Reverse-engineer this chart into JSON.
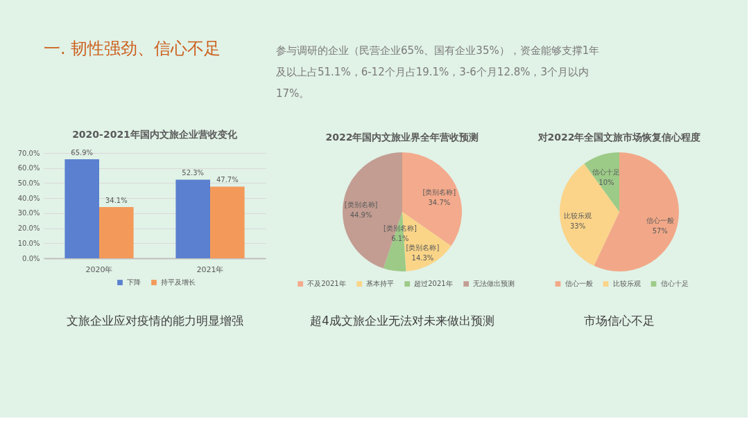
{
  "chart_data": [
    {
      "type": "other",
      "title": "一. 韧性强劲、信心不足",
      "annotations": [
        "参与调研的企业（民营企业65%、国有企业35%），资金能够支撑1年及以上占51.1%，6-12个月占19.1%，3-6个月12.8%，3个月以内17%。"
      ]
    },
    {
      "type": "bar",
      "title": "2020-2021年国内文旅企业营收变化",
      "categories": [
        "2020年",
        "2021年"
      ],
      "series": [
        {
          "name": "下降",
          "color": "#5a80cf",
          "values": [
            65.9,
            52.3
          ],
          "value_labels": [
            "65.9%",
            "52.3%"
          ]
        },
        {
          "name": "持平及增长",
          "color": "#f39a5a",
          "values": [
            34.1,
            47.7
          ],
          "value_labels": [
            "34.1%",
            "47.7%"
          ]
        }
      ],
      "ylim": [
        0,
        70
      ],
      "yticks": [
        {
          "value": 0,
          "label": "0.0%"
        },
        {
          "value": 10,
          "label": "10.0%"
        },
        {
          "value": 20,
          "label": "20.0%"
        },
        {
          "value": 30,
          "label": "30.0%"
        },
        {
          "value": 40,
          "label": "40.0%"
        },
        {
          "value": 50,
          "label": "50.0%"
        },
        {
          "value": 60,
          "label": "60.0%"
        },
        {
          "value": 70,
          "label": "70.0%"
        }
      ],
      "grid": "y",
      "legend": "bottom",
      "annotations": [
        "文旅企业应对疫情的能力明显增强"
      ]
    },
    {
      "type": "pie",
      "title": "2022年国内文旅业界全年营收预测",
      "categories": [
        "不及2021年",
        "基本持平",
        "超过2021年",
        "无法做出预测"
      ],
      "values": [
        34.7,
        14.3,
        6.1,
        44.9
      ],
      "colors": [
        "#f4aa8c",
        "#fad588",
        "#9dca87",
        "#c39d92"
      ],
      "value_labels": [
        "[类别名称]\n34.7%",
        "[类别名称]\n14.3%",
        "[类别名称]\n6.1%",
        "[类别名称]\n44.9%"
      ],
      "legend": "bottom",
      "annotations": [
        "超4成文旅企业无法对未来做出预测"
      ]
    },
    {
      "type": "pie",
      "title": "对2022年全国文旅市场恢复信心程度",
      "categories": [
        "信心一般",
        "比较乐观",
        "信心十足"
      ],
      "values": [
        57,
        33,
        10
      ],
      "colors": [
        "#f2a888",
        "#fbd489",
        "#9ccb88"
      ],
      "value_labels": [
        "信心一般\n57%",
        "比较乐观\n33%",
        "信心十足\n10%"
      ],
      "legend": "bottom",
      "annotations": [
        "市场信心不足"
      ]
    }
  ]
}
